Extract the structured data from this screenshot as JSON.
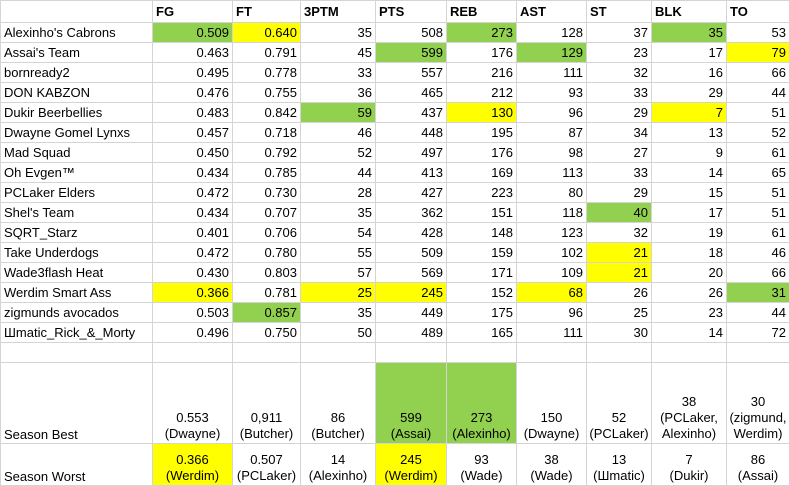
{
  "table": {
    "columns": [
      "FG",
      "FT",
      "3PTM",
      "PTS",
      "REB",
      "AST",
      "ST",
      "BLK",
      "TO"
    ],
    "rows": [
      {
        "name": "Alexinho's Cabrons",
        "values": [
          "0.509",
          "0.640",
          "35",
          "508",
          "273",
          "128",
          "37",
          "35",
          "53"
        ]
      },
      {
        "name": "Assai's Team",
        "values": [
          "0.463",
          "0.791",
          "45",
          "599",
          "176",
          "129",
          "23",
          "17",
          "79"
        ]
      },
      {
        "name": "bornready2",
        "values": [
          "0.495",
          "0.778",
          "33",
          "557",
          "216",
          "111",
          "32",
          "16",
          "66"
        ]
      },
      {
        "name": "DON KABZON",
        "values": [
          "0.476",
          "0.755",
          "36",
          "465",
          "212",
          "93",
          "33",
          "29",
          "44"
        ]
      },
      {
        "name": "Dukir Beerbellies",
        "values": [
          "0.483",
          "0.842",
          "59",
          "437",
          "130",
          "96",
          "29",
          "7",
          "51"
        ]
      },
      {
        "name": "Dwayne Gomel Lynxs",
        "values": [
          "0.457",
          "0.718",
          "46",
          "448",
          "195",
          "87",
          "34",
          "13",
          "52"
        ]
      },
      {
        "name": "Mad Squad",
        "values": [
          "0.450",
          "0.792",
          "52",
          "497",
          "176",
          "98",
          "27",
          "9",
          "61"
        ]
      },
      {
        "name": "Oh Evgen™",
        "values": [
          "0.434",
          "0.785",
          "44",
          "413",
          "169",
          "113",
          "33",
          "14",
          "65"
        ]
      },
      {
        "name": "PCLaker Elders",
        "values": [
          "0.472",
          "0.730",
          "28",
          "427",
          "223",
          "80",
          "29",
          "15",
          "51"
        ]
      },
      {
        "name": "Shel's Team",
        "values": [
          "0.434",
          "0.707",
          "35",
          "362",
          "151",
          "118",
          "40",
          "17",
          "51"
        ]
      },
      {
        "name": "SQRT_Starz",
        "values": [
          "0.401",
          "0.706",
          "54",
          "428",
          "148",
          "123",
          "32",
          "19",
          "61"
        ]
      },
      {
        "name": "Take Underdogs",
        "values": [
          "0.472",
          "0.780",
          "55",
          "509",
          "159",
          "102",
          "21",
          "18",
          "46"
        ]
      },
      {
        "name": "Wade3flash Heat",
        "values": [
          "0.430",
          "0.803",
          "57",
          "569",
          "171",
          "109",
          "21",
          "20",
          "66"
        ]
      },
      {
        "name": "Werdim Smart Ass",
        "values": [
          "0.366",
          "0.781",
          "25",
          "245",
          "152",
          "68",
          "26",
          "26",
          "31"
        ]
      },
      {
        "name": "zigmunds avocados",
        "values": [
          "0.503",
          "0.857",
          "35",
          "449",
          "175",
          "96",
          "25",
          "23",
          "44"
        ]
      },
      {
        "name": "Шmatic_Rick_&_Morty",
        "values": [
          "0.496",
          "0.750",
          "50",
          "489",
          "165",
          "111",
          "30",
          "14",
          "72"
        ]
      }
    ],
    "summary": [
      {
        "label": "Season Best",
        "cells": [
          [
            "0.553",
            "(Dwayne)"
          ],
          [
            "0,911",
            "(Butcher)"
          ],
          [
            "86",
            "(Butcher)"
          ],
          [
            "599",
            "(Assai)"
          ],
          [
            "273",
            "(Alexinho)"
          ],
          [
            "150",
            "(Dwayne)"
          ],
          [
            "52",
            "(PCLaker)"
          ],
          [
            "38",
            "(PCLaker,",
            "Alexinho)"
          ],
          [
            "30",
            "(zigmund,",
            "Werdim)"
          ]
        ]
      },
      {
        "label": "Season Worst",
        "cells": [
          [
            "0.366",
            "(Werdim)"
          ],
          [
            "0.507",
            "(PCLaker)"
          ],
          [
            "14",
            "(Alexinho)"
          ],
          [
            "245",
            "(Werdim)"
          ],
          [
            "93",
            "(Wade)"
          ],
          [
            "38",
            "(Wade)"
          ],
          [
            "13",
            "(Шmatic)"
          ],
          [
            "7",
            "(Dukir)"
          ],
          [
            "86",
            "(Assai)"
          ]
        ]
      }
    ]
  }
}
